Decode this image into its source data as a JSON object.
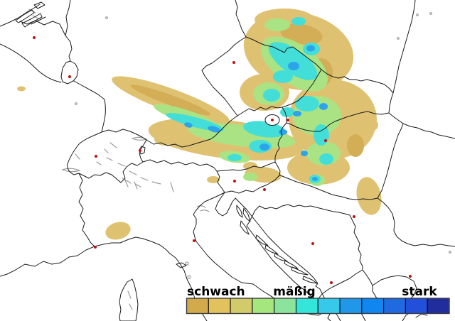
{
  "legend": {
    "label_weak": "schwach",
    "label_moderate": "mäßig",
    "label_strong": "stark",
    "colors": [
      "#D2A94B",
      "#E2C25C",
      "#D2CB6B",
      "#A6E67F",
      "#8CE49C",
      "#33E6D9",
      "#36C9EA",
      "#2097E9",
      "#0F86F0",
      "#1F69E1",
      "#2250DB",
      "#212D9D"
    ]
  },
  "map": {
    "background_color": "#ffffff",
    "border_color": "#1a1a1a",
    "terrain_color": "#9a9a9a",
    "city_marker_color": "#c01010",
    "city_markers": [
      [
        48,
        53
      ],
      [
        98,
        108
      ],
      [
        135,
        220
      ],
      [
        197,
        212
      ],
      [
        329,
        88
      ],
      [
        383,
        169
      ],
      [
        405,
        169
      ],
      [
        458,
        198
      ],
      [
        330,
        255
      ],
      [
        372,
        267
      ],
      [
        498,
        305
      ],
      [
        440,
        343
      ],
      [
        466,
        398
      ],
      [
        577,
        389
      ],
      [
        134,
        348
      ],
      [
        273,
        339
      ]
    ],
    "precipitation": {
      "levels": [
        {
          "name": "schwach-tan",
          "color": "#DFC271"
        },
        {
          "name": "schwach-dark-tan",
          "color": "#D3AE57"
        },
        {
          "name": "maessig-green",
          "color": "#A9E383"
        },
        {
          "name": "maessig-cyan",
          "color": "#44DED9"
        },
        {
          "name": "maessig-blue",
          "color": "#2DA4EA"
        }
      ]
    }
  }
}
